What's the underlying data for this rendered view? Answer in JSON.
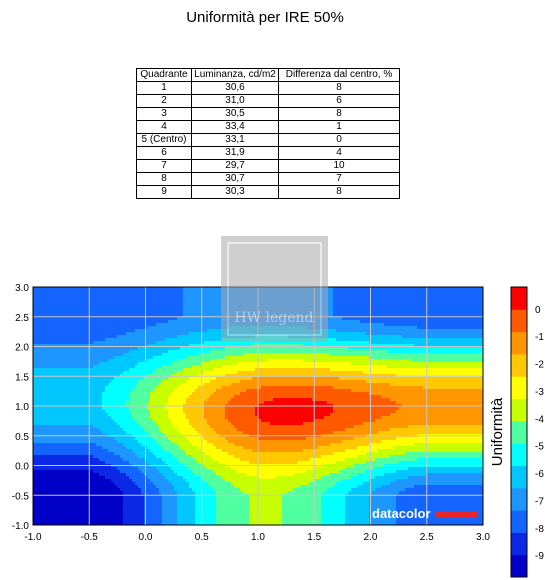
{
  "title": "Uniformità per IRE 50%",
  "table": {
    "headers": [
      "Quadrante",
      "Luminanza, cd/m2",
      "Differenza dal centro, %"
    ],
    "rows": [
      [
        "1",
        "30,6",
        "8"
      ],
      [
        "2",
        "31,0",
        "6"
      ],
      [
        "3",
        "30,5",
        "8"
      ],
      [
        "4",
        "33,4",
        "1"
      ],
      [
        "5 (Centro)",
        "33,1",
        "0"
      ],
      [
        "6",
        "31,9",
        "4"
      ],
      [
        "7",
        "29,7",
        "10"
      ],
      [
        "8",
        "30,7",
        "7"
      ],
      [
        "9",
        "30,3",
        "8"
      ]
    ]
  },
  "watermark": "HW legend",
  "brand": "datacolor",
  "colors": {
    "brand_bar": "#e8262a",
    "levels": [
      "#0000c8",
      "#0a28e6",
      "#1464ff",
      "#1e96ff",
      "#00c8ff",
      "#00ffff",
      "#50ffa0",
      "#c8ff00",
      "#ffff00",
      "#ffc800",
      "#ff9600",
      "#ff5a00",
      "#ff0000"
    ]
  },
  "chart_data": {
    "type": "heatmap",
    "subtype": "contour",
    "title": "",
    "xlabel": "",
    "ylabel": "",
    "colorbar_label": "Uniformità",
    "xlim": [
      -1.0,
      3.0
    ],
    "ylim": [
      -1.0,
      3.0
    ],
    "x_ticks": [
      "-1.0",
      "-0.5",
      "0.0",
      "0.5",
      "1.0",
      "1.5",
      "2.0",
      "2.5",
      "3.0"
    ],
    "y_ticks": [
      "-1.0",
      "-0.5",
      "0.0",
      "0.5",
      "1.0",
      "1.5",
      "2.0",
      "2.5",
      "3.0"
    ],
    "colorbar_ticks": [
      "0",
      "-1",
      "-2",
      "-3",
      "-4",
      "-5",
      "-6",
      "-7",
      "-8",
      "-9"
    ],
    "colorbar_range": [
      -9.8,
      0.8
    ],
    "grid": true,
    "x": [
      0,
      1,
      2
    ],
    "y": [
      0,
      1,
      2
    ],
    "z": [
      [
        -10,
        -4,
        -8
      ],
      [
        -6,
        0,
        -1
      ],
      [
        -8,
        -7,
        -8
      ]
    ]
  }
}
